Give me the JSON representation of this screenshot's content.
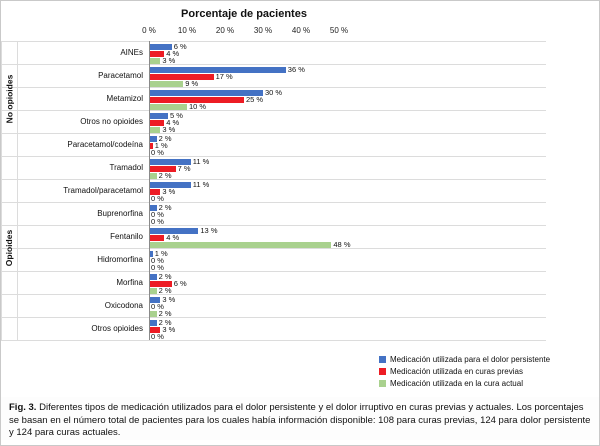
{
  "chart_data": {
    "type": "bar",
    "orientation": "horizontal",
    "title": "Porcentaje de pacientes",
    "value_axis": {
      "min": 0,
      "max": 50,
      "tick_labels": [
        "0 %",
        "10 %",
        "20 %",
        "30 %",
        "40 %",
        "50 %"
      ]
    },
    "value_label_suffix": " %",
    "legend_position": "bottom-right",
    "grid": "horizontal-category-separators",
    "series": [
      {
        "name": "Medicación utilizada para el dolor persistente",
        "color": "#4472C4"
      },
      {
        "name": "Medicación utilizada en curas previas",
        "color": "#ED1C24"
      },
      {
        "name": "Medicación utilizada en la cura actual",
        "color": "#A9D18E"
      }
    ],
    "groups": [
      {
        "label": "No opioides",
        "categories": [
          {
            "name": "AINEs",
            "values": [
              6,
              4,
              3
            ]
          },
          {
            "name": "Paracetamol",
            "values": [
              36,
              17,
              9
            ]
          },
          {
            "name": "Metamizol",
            "values": [
              30,
              25,
              10
            ]
          },
          {
            "name": "Otros no opioides",
            "values": [
              5,
              4,
              3
            ]
          },
          {
            "name": "Paracetamol/codeína",
            "values": [
              2,
              1,
              0
            ]
          }
        ]
      },
      {
        "label": "Opioides",
        "categories": [
          {
            "name": "Tramadol",
            "values": [
              11,
              7,
              2
            ]
          },
          {
            "name": "Tramadol/paracetamol",
            "values": [
              11,
              3,
              0
            ]
          },
          {
            "name": "Buprenorfina",
            "values": [
              2,
              0,
              0
            ]
          },
          {
            "name": "Fentanilo",
            "values": [
              13,
              4,
              48
            ]
          },
          {
            "name": "Hidromorfina",
            "values": [
              1,
              0,
              0
            ]
          },
          {
            "name": "Morfina",
            "values": [
              2,
              6,
              2
            ]
          },
          {
            "name": "Oxicodona",
            "values": [
              3,
              0,
              2
            ]
          },
          {
            "name": "Otros opioides",
            "values": [
              2,
              3,
              0
            ]
          }
        ]
      }
    ]
  },
  "caption": {
    "label": "Fig. 3.",
    "text": "Diferentes tipos de medicación utilizados para el dolor persistente y el dolor irruptivo en curas previas y actuales. Los porcentajes se basan en el número total de pacientes para los cuales había información disponible: 108 para curas previas, 124 para dolor persistente y 124 para curas actuales."
  }
}
